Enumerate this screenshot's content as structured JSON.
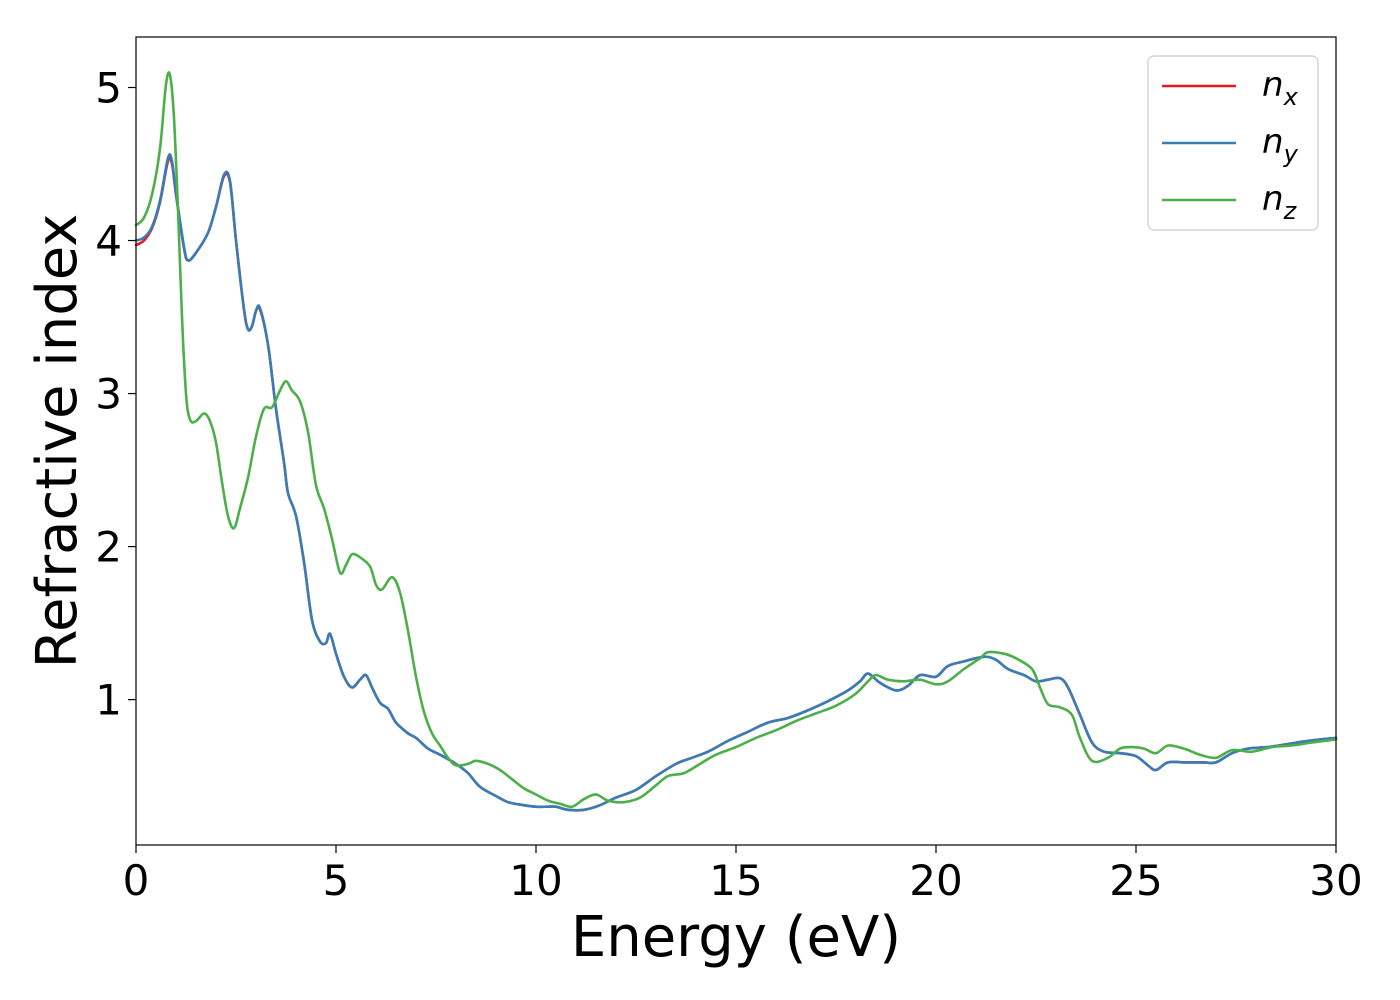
{
  "chart_data": {
    "type": "line",
    "title": "",
    "xlabel": "Energy (eV)",
    "ylabel": "Refractive index",
    "xlim": [
      0,
      30
    ],
    "ylim": [
      0.05,
      5.33
    ],
    "xticks": [
      0,
      5,
      10,
      15,
      20,
      25,
      30
    ],
    "yticks": [
      1,
      2,
      3,
      4,
      5
    ],
    "grid": false,
    "legend": {
      "position": "top-right",
      "entries": [
        {
          "base": "n",
          "sub": "x"
        },
        {
          "base": "n",
          "sub": "y"
        },
        {
          "base": "n",
          "sub": "z"
        }
      ]
    },
    "series": [
      {
        "name": "nx",
        "color": "#e41a1c",
        "points": [
          [
            0,
            3.97
          ],
          [
            0.2,
            4.0
          ],
          [
            0.4,
            4.08
          ],
          [
            0.6,
            4.25
          ],
          [
            0.8,
            4.52
          ],
          [
            0.9,
            4.5
          ],
          [
            1.0,
            4.3
          ],
          [
            1.2,
            3.95
          ],
          [
            1.3,
            3.87
          ],
          [
            1.5,
            3.92
          ],
          [
            1.8,
            4.05
          ],
          [
            2.0,
            4.22
          ],
          [
            2.2,
            4.42
          ],
          [
            2.35,
            4.38
          ],
          [
            2.5,
            4.0
          ],
          [
            2.7,
            3.55
          ],
          [
            2.8,
            3.42
          ],
          [
            2.9,
            3.44
          ],
          [
            3.0,
            3.54
          ],
          [
            3.1,
            3.55
          ],
          [
            3.3,
            3.32
          ],
          [
            3.5,
            2.9
          ],
          [
            3.7,
            2.55
          ],
          [
            3.8,
            2.35
          ],
          [
            4.0,
            2.2
          ],
          [
            4.2,
            1.9
          ],
          [
            4.4,
            1.52
          ],
          [
            4.6,
            1.38
          ],
          [
            4.75,
            1.37
          ],
          [
            4.85,
            1.43
          ],
          [
            5.0,
            1.3
          ],
          [
            5.2,
            1.15
          ],
          [
            5.4,
            1.08
          ],
          [
            5.6,
            1.13
          ],
          [
            5.75,
            1.16
          ],
          [
            5.9,
            1.08
          ],
          [
            6.1,
            0.98
          ],
          [
            6.3,
            0.94
          ],
          [
            6.5,
            0.85
          ],
          [
            6.8,
            0.78
          ],
          [
            7.0,
            0.75
          ],
          [
            7.3,
            0.68
          ],
          [
            7.6,
            0.64
          ],
          [
            8.0,
            0.58
          ],
          [
            8.3,
            0.52
          ],
          [
            8.6,
            0.43
          ],
          [
            9.0,
            0.37
          ],
          [
            9.3,
            0.33
          ],
          [
            9.7,
            0.31
          ],
          [
            10.0,
            0.3
          ],
          [
            10.3,
            0.3
          ],
          [
            10.5,
            0.3
          ],
          [
            10.8,
            0.28
          ],
          [
            11.2,
            0.28
          ],
          [
            11.6,
            0.31
          ],
          [
            12.0,
            0.36
          ],
          [
            12.5,
            0.41
          ],
          [
            13.0,
            0.5
          ],
          [
            13.5,
            0.58
          ],
          [
            13.9,
            0.62
          ],
          [
            14.3,
            0.66
          ],
          [
            14.8,
            0.73
          ],
          [
            15.3,
            0.79
          ],
          [
            15.8,
            0.85
          ],
          [
            16.3,
            0.88
          ],
          [
            16.8,
            0.93
          ],
          [
            17.3,
            0.99
          ],
          [
            17.8,
            1.06
          ],
          [
            18.1,
            1.12
          ],
          [
            18.3,
            1.17
          ],
          [
            18.6,
            1.11
          ],
          [
            19.0,
            1.06
          ],
          [
            19.3,
            1.09
          ],
          [
            19.6,
            1.16
          ],
          [
            20.0,
            1.15
          ],
          [
            20.3,
            1.22
          ],
          [
            20.7,
            1.25
          ],
          [
            21.2,
            1.28
          ],
          [
            21.5,
            1.26
          ],
          [
            21.8,
            1.2
          ],
          [
            22.2,
            1.16
          ],
          [
            22.5,
            1.12
          ],
          [
            22.8,
            1.13
          ],
          [
            23.1,
            1.14
          ],
          [
            23.3,
            1.08
          ],
          [
            23.6,
            0.9
          ],
          [
            23.9,
            0.72
          ],
          [
            24.2,
            0.66
          ],
          [
            24.6,
            0.65
          ],
          [
            25.0,
            0.63
          ],
          [
            25.3,
            0.57
          ],
          [
            25.5,
            0.54
          ],
          [
            25.8,
            0.59
          ],
          [
            26.2,
            0.59
          ],
          [
            26.7,
            0.59
          ],
          [
            27.0,
            0.59
          ],
          [
            27.4,
            0.65
          ],
          [
            27.8,
            0.68
          ],
          [
            28.3,
            0.69
          ],
          [
            28.8,
            0.71
          ],
          [
            29.3,
            0.73
          ],
          [
            30.0,
            0.75
          ]
        ]
      },
      {
        "name": "ny",
        "color": "#377eb8",
        "points": [
          [
            0,
            4.0
          ],
          [
            0.2,
            4.02
          ],
          [
            0.4,
            4.09
          ],
          [
            0.6,
            4.26
          ],
          [
            0.8,
            4.54
          ],
          [
            0.9,
            4.52
          ],
          [
            1.0,
            4.31
          ],
          [
            1.2,
            3.96
          ],
          [
            1.3,
            3.87
          ],
          [
            1.5,
            3.92
          ],
          [
            1.8,
            4.05
          ],
          [
            2.0,
            4.22
          ],
          [
            2.2,
            4.43
          ],
          [
            2.35,
            4.39
          ],
          [
            2.5,
            4.0
          ],
          [
            2.7,
            3.55
          ],
          [
            2.8,
            3.42
          ],
          [
            2.9,
            3.44
          ],
          [
            3.0,
            3.54
          ],
          [
            3.1,
            3.56
          ],
          [
            3.3,
            3.32
          ],
          [
            3.5,
            2.9
          ],
          [
            3.7,
            2.55
          ],
          [
            3.8,
            2.35
          ],
          [
            4.0,
            2.2
          ],
          [
            4.2,
            1.9
          ],
          [
            4.4,
            1.52
          ],
          [
            4.6,
            1.38
          ],
          [
            4.75,
            1.37
          ],
          [
            4.85,
            1.43
          ],
          [
            5.0,
            1.3
          ],
          [
            5.2,
            1.15
          ],
          [
            5.4,
            1.08
          ],
          [
            5.6,
            1.13
          ],
          [
            5.75,
            1.16
          ],
          [
            5.9,
            1.08
          ],
          [
            6.1,
            0.98
          ],
          [
            6.3,
            0.94
          ],
          [
            6.5,
            0.85
          ],
          [
            6.8,
            0.78
          ],
          [
            7.0,
            0.75
          ],
          [
            7.3,
            0.68
          ],
          [
            7.6,
            0.64
          ],
          [
            8.0,
            0.58
          ],
          [
            8.3,
            0.52
          ],
          [
            8.6,
            0.43
          ],
          [
            9.0,
            0.37
          ],
          [
            9.3,
            0.33
          ],
          [
            9.7,
            0.31
          ],
          [
            10.0,
            0.3
          ],
          [
            10.3,
            0.3
          ],
          [
            10.5,
            0.3
          ],
          [
            10.8,
            0.28
          ],
          [
            11.2,
            0.28
          ],
          [
            11.6,
            0.31
          ],
          [
            12.0,
            0.36
          ],
          [
            12.5,
            0.41
          ],
          [
            13.0,
            0.5
          ],
          [
            13.5,
            0.58
          ],
          [
            13.9,
            0.62
          ],
          [
            14.3,
            0.66
          ],
          [
            14.8,
            0.73
          ],
          [
            15.3,
            0.79
          ],
          [
            15.8,
            0.85
          ],
          [
            16.3,
            0.88
          ],
          [
            16.8,
            0.93
          ],
          [
            17.3,
            0.99
          ],
          [
            17.8,
            1.06
          ],
          [
            18.1,
            1.12
          ],
          [
            18.3,
            1.17
          ],
          [
            18.6,
            1.11
          ],
          [
            19.0,
            1.06
          ],
          [
            19.3,
            1.09
          ],
          [
            19.6,
            1.16
          ],
          [
            20.0,
            1.15
          ],
          [
            20.3,
            1.22
          ],
          [
            20.7,
            1.25
          ],
          [
            21.2,
            1.28
          ],
          [
            21.5,
            1.26
          ],
          [
            21.8,
            1.2
          ],
          [
            22.2,
            1.16
          ],
          [
            22.5,
            1.12
          ],
          [
            22.8,
            1.13
          ],
          [
            23.1,
            1.14
          ],
          [
            23.3,
            1.08
          ],
          [
            23.6,
            0.9
          ],
          [
            23.9,
            0.72
          ],
          [
            24.2,
            0.66
          ],
          [
            24.6,
            0.65
          ],
          [
            25.0,
            0.63
          ],
          [
            25.3,
            0.57
          ],
          [
            25.5,
            0.54
          ],
          [
            25.8,
            0.59
          ],
          [
            26.2,
            0.59
          ],
          [
            26.7,
            0.59
          ],
          [
            27.0,
            0.59
          ],
          [
            27.4,
            0.65
          ],
          [
            27.8,
            0.68
          ],
          [
            28.3,
            0.69
          ],
          [
            28.8,
            0.71
          ],
          [
            29.3,
            0.73
          ],
          [
            30.0,
            0.75
          ]
        ]
      },
      {
        "name": "nz",
        "color": "#4daf4a",
        "points": [
          [
            0,
            4.1
          ],
          [
            0.2,
            4.15
          ],
          [
            0.4,
            4.3
          ],
          [
            0.6,
            4.6
          ],
          [
            0.75,
            5.02
          ],
          [
            0.85,
            5.08
          ],
          [
            0.95,
            4.8
          ],
          [
            1.05,
            4.2
          ],
          [
            1.15,
            3.5
          ],
          [
            1.25,
            3.0
          ],
          [
            1.35,
            2.83
          ],
          [
            1.5,
            2.82
          ],
          [
            1.7,
            2.87
          ],
          [
            1.85,
            2.82
          ],
          [
            2.0,
            2.68
          ],
          [
            2.15,
            2.42
          ],
          [
            2.3,
            2.2
          ],
          [
            2.45,
            2.12
          ],
          [
            2.6,
            2.25
          ],
          [
            2.8,
            2.45
          ],
          [
            3.0,
            2.72
          ],
          [
            3.2,
            2.9
          ],
          [
            3.4,
            2.91
          ],
          [
            3.6,
            3.02
          ],
          [
            3.75,
            3.08
          ],
          [
            3.9,
            3.02
          ],
          [
            4.1,
            2.95
          ],
          [
            4.3,
            2.75
          ],
          [
            4.5,
            2.4
          ],
          [
            4.7,
            2.25
          ],
          [
            4.9,
            2.05
          ],
          [
            5.1,
            1.83
          ],
          [
            5.25,
            1.88
          ],
          [
            5.4,
            1.95
          ],
          [
            5.6,
            1.93
          ],
          [
            5.85,
            1.87
          ],
          [
            6.0,
            1.75
          ],
          [
            6.15,
            1.72
          ],
          [
            6.4,
            1.8
          ],
          [
            6.6,
            1.7
          ],
          [
            6.8,
            1.45
          ],
          [
            7.0,
            1.15
          ],
          [
            7.2,
            0.92
          ],
          [
            7.4,
            0.78
          ],
          [
            7.6,
            0.7
          ],
          [
            7.8,
            0.62
          ],
          [
            8.0,
            0.57
          ],
          [
            8.3,
            0.58
          ],
          [
            8.5,
            0.6
          ],
          [
            8.8,
            0.58
          ],
          [
            9.1,
            0.54
          ],
          [
            9.4,
            0.48
          ],
          [
            9.7,
            0.42
          ],
          [
            10.0,
            0.38
          ],
          [
            10.3,
            0.34
          ],
          [
            10.6,
            0.32
          ],
          [
            10.9,
            0.3
          ],
          [
            11.2,
            0.35
          ],
          [
            11.5,
            0.38
          ],
          [
            11.8,
            0.34
          ],
          [
            12.2,
            0.33
          ],
          [
            12.6,
            0.36
          ],
          [
            13.0,
            0.44
          ],
          [
            13.3,
            0.5
          ],
          [
            13.7,
            0.52
          ],
          [
            14.1,
            0.58
          ],
          [
            14.5,
            0.64
          ],
          [
            15.0,
            0.69
          ],
          [
            15.5,
            0.75
          ],
          [
            16.0,
            0.8
          ],
          [
            16.5,
            0.86
          ],
          [
            17.0,
            0.91
          ],
          [
            17.5,
            0.96
          ],
          [
            18.0,
            1.04
          ],
          [
            18.3,
            1.12
          ],
          [
            18.5,
            1.16
          ],
          [
            18.8,
            1.13
          ],
          [
            19.2,
            1.12
          ],
          [
            19.6,
            1.13
          ],
          [
            20.0,
            1.1
          ],
          [
            20.3,
            1.12
          ],
          [
            20.7,
            1.2
          ],
          [
            21.1,
            1.27
          ],
          [
            21.3,
            1.31
          ],
          [
            21.7,
            1.3
          ],
          [
            22.0,
            1.27
          ],
          [
            22.4,
            1.2
          ],
          [
            22.6,
            1.08
          ],
          [
            22.8,
            0.97
          ],
          [
            23.1,
            0.95
          ],
          [
            23.4,
            0.9
          ],
          [
            23.6,
            0.75
          ],
          [
            23.9,
            0.6
          ],
          [
            24.3,
            0.62
          ],
          [
            24.6,
            0.68
          ],
          [
            24.9,
            0.69
          ],
          [
            25.2,
            0.68
          ],
          [
            25.5,
            0.65
          ],
          [
            25.8,
            0.7
          ],
          [
            26.2,
            0.68
          ],
          [
            26.6,
            0.64
          ],
          [
            27.0,
            0.62
          ],
          [
            27.4,
            0.67
          ],
          [
            27.9,
            0.66
          ],
          [
            28.4,
            0.69
          ],
          [
            28.9,
            0.7
          ],
          [
            29.4,
            0.72
          ],
          [
            30.0,
            0.74
          ]
        ]
      }
    ]
  }
}
